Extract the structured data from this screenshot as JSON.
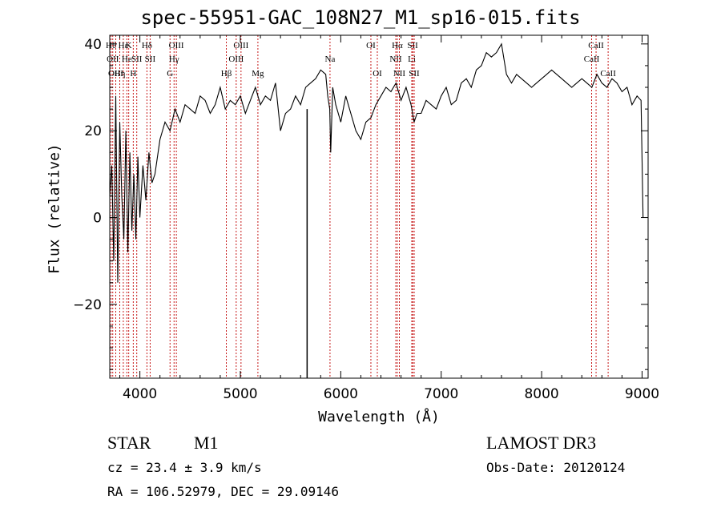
{
  "figure": {
    "title": "spec-55951-GAC_108N27_M1_sp16-015.fits",
    "object_class": "STAR",
    "subclass": "M1",
    "survey": "LAMOST DR3",
    "redshift_text": "cz = 23.4 ± 3.9 km/s",
    "obs_date_text": "Obs-Date: 20120124",
    "coords_text": "RA = 106.52979, DEC =  29.09146"
  },
  "chart_data": {
    "type": "line",
    "title": "spec-55951-GAC_108N27_M1_sp16-015.fits",
    "xlabel": "Wavelength (Å)",
    "ylabel": "Flux (relative)",
    "xlim": [
      3700,
      9060
    ],
    "ylim": [
      -37,
      42
    ],
    "xticks": [
      4000,
      5000,
      6000,
      7000,
      8000,
      9000
    ],
    "xtick_labels": [
      "4000",
      "5000",
      "6000",
      "7000",
      "8000",
      "9000"
    ],
    "yticks": [
      -20,
      0,
      20,
      40
    ],
    "ytick_labels": [
      "−20",
      "0",
      "20",
      "40"
    ],
    "line_color": "#000000",
    "marker_color": "#c00000",
    "series": [
      {
        "name": "flux",
        "x": [
          3700,
          3720,
          3740,
          3760,
          3780,
          3800,
          3820,
          3840,
          3860,
          3880,
          3900,
          3920,
          3940,
          3960,
          3980,
          4000,
          4030,
          4060,
          4090,
          4120,
          4150,
          4200,
          4250,
          4300,
          4350,
          4400,
          4450,
          4500,
          4550,
          4600,
          4650,
          4700,
          4750,
          4800,
          4850,
          4900,
          4950,
          5000,
          5050,
          5100,
          5150,
          5200,
          5250,
          5300,
          5350,
          5400,
          5450,
          5500,
          5550,
          5600,
          5650,
          5700,
          5750,
          5800,
          5850,
          5870,
          5890,
          5900,
          5920,
          5950,
          6000,
          6050,
          6100,
          6150,
          6200,
          6250,
          6300,
          6350,
          6400,
          6450,
          6500,
          6550,
          6600,
          6650,
          6700,
          6730,
          6760,
          6800,
          6850,
          6900,
          6950,
          7000,
          7050,
          7100,
          7150,
          7200,
          7250,
          7300,
          7350,
          7400,
          7450,
          7500,
          7550,
          7600,
          7650,
          7700,
          7750,
          7800,
          7850,
          7900,
          7950,
          8000,
          8050,
          8100,
          8150,
          8200,
          8250,
          8300,
          8350,
          8400,
          8450,
          8500,
          8550,
          8600,
          8650,
          8700,
          8750,
          8800,
          8850,
          8900,
          8950,
          8990,
          9010
        ],
        "y": [
          5,
          12,
          -10,
          28,
          -15,
          22,
          5,
          -5,
          20,
          -8,
          15,
          -3,
          10,
          -5,
          14,
          0,
          12,
          4,
          15,
          8,
          10,
          18,
          22,
          20,
          25,
          22,
          26,
          25,
          24,
          28,
          27,
          24,
          26,
          30,
          25,
          27,
          26,
          28,
          24,
          27,
          30,
          26,
          28,
          27,
          31,
          20,
          24,
          25,
          28,
          26,
          30,
          31,
          32,
          34,
          33,
          28,
          25,
          15,
          30,
          26,
          22,
          28,
          24,
          20,
          18,
          22,
          23,
          26,
          28,
          30,
          29,
          31,
          27,
          30,
          26,
          22,
          24,
          24,
          27,
          26,
          25,
          28,
          30,
          26,
          27,
          31,
          32,
          30,
          34,
          35,
          38,
          37,
          38,
          40,
          33,
          31,
          33,
          32,
          31,
          30,
          31,
          32,
          33,
          34,
          33,
          32,
          31,
          30,
          31,
          32,
          31,
          30,
          33,
          31,
          30,
          32,
          31,
          29,
          30,
          26,
          28,
          27,
          0
        ]
      }
    ],
    "gaps": [
      {
        "x": 5665,
        "from": -37,
        "to": 25
      }
    ],
    "line_markers": [
      {
        "x": 3713,
        "label": "Hθ",
        "row": 0
      },
      {
        "x": 3730,
        "label": "OII",
        "row": 1
      },
      {
        "x": 3760,
        "label": "OIII",
        "row": 2
      },
      {
        "x": 3800,
        "label": "Hη",
        "row": 2
      },
      {
        "x": 3835,
        "label": "Hε",
        "row": 0
      },
      {
        "x": 3870,
        "label": "He",
        "row": 1
      },
      {
        "x": 3889,
        "label": "K",
        "row": 0
      },
      {
        "x": 3934,
        "label": "H",
        "row": 2
      },
      {
        "x": 3969,
        "label": "SII",
        "row": 1
      },
      {
        "x": 4070,
        "label": "Hδ",
        "row": 0
      },
      {
        "x": 4102,
        "label": "SII",
        "row": 1
      },
      {
        "x": 4300,
        "label": "G",
        "row": 2
      },
      {
        "x": 4340,
        "label": "Hγ",
        "row": 1
      },
      {
        "x": 4363,
        "label": "OIII",
        "row": 0
      },
      {
        "x": 4861,
        "label": "Hβ",
        "row": 2
      },
      {
        "x": 4959,
        "label": "OIII",
        "row": 1
      },
      {
        "x": 5007,
        "label": "OIII",
        "row": 0
      },
      {
        "x": 5175,
        "label": "Mg",
        "row": 2
      },
      {
        "x": 5893,
        "label": "Na",
        "row": 1
      },
      {
        "x": 6300,
        "label": "OI",
        "row": 0
      },
      {
        "x": 6364,
        "label": "OI",
        "row": 2
      },
      {
        "x": 6548,
        "label": "NII",
        "row": 1
      },
      {
        "x": 6563,
        "label": "Hα",
        "row": 0
      },
      {
        "x": 6583,
        "label": "NII",
        "row": 2
      },
      {
        "x": 6707,
        "label": "Li",
        "row": 1
      },
      {
        "x": 6716,
        "label": "SII",
        "row": 0
      },
      {
        "x": 6731,
        "label": "SII",
        "row": 2
      },
      {
        "x": 8498,
        "label": "CaII",
        "row": 1
      },
      {
        "x": 8542,
        "label": "CaII",
        "row": 0
      },
      {
        "x": 8662,
        "label": "CaII",
        "row": 2
      }
    ]
  }
}
